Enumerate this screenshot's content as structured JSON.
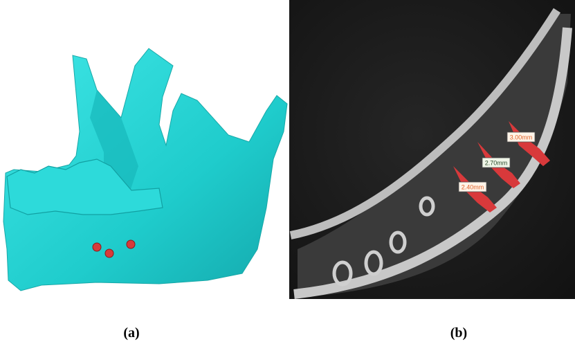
{
  "panels": [
    {
      "caption": "(a)"
    },
    {
      "caption": "(b)",
      "labels": [
        "3.00mm",
        "2.70mm",
        "2.40mm"
      ]
    }
  ]
}
